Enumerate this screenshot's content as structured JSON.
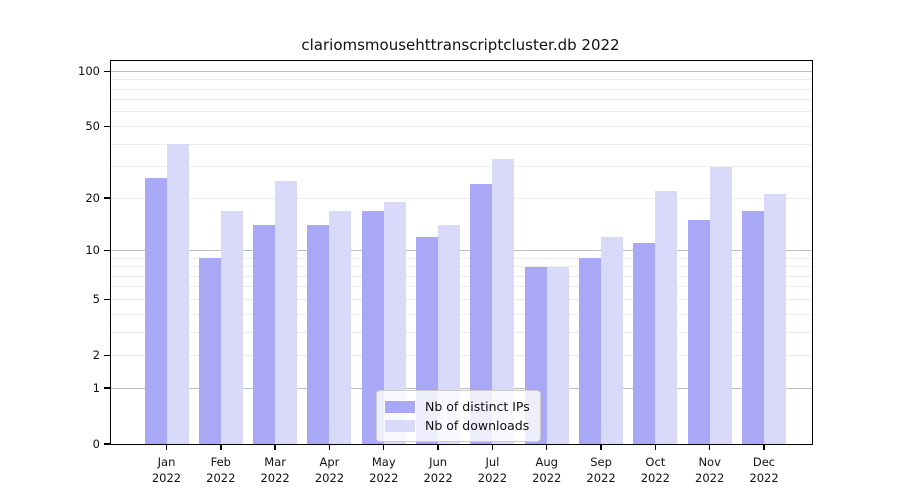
{
  "title": "clariomsmousehttranscriptcluster.db 2022",
  "chart_data": {
    "type": "bar",
    "title": "clariomsmousehttranscriptcluster.db 2022",
    "categories": [
      "Jan",
      "Feb",
      "Mar",
      "Apr",
      "May",
      "Jun",
      "Jul",
      "Aug",
      "Sep",
      "Oct",
      "Nov",
      "Dec"
    ],
    "category_year": "2022",
    "series": [
      {
        "name": "Nb of distinct IPs",
        "color": "#a8a8f6",
        "values": [
          26,
          9,
          14,
          14,
          17,
          12,
          24,
          8,
          9,
          11,
          15,
          17
        ]
      },
      {
        "name": "Nb of downloads",
        "color": "#d9d9f9",
        "values": [
          40,
          17,
          25,
          17,
          19,
          14,
          33,
          8,
          12,
          22,
          30,
          21
        ]
      }
    ],
    "xlabel": "",
    "ylabel": "",
    "yscale": "log1p",
    "yticks": [
      0,
      1,
      2,
      5,
      10,
      20,
      50,
      100
    ],
    "gridlines_major": [
      1,
      10,
      100
    ],
    "gridlines_minor": [
      2,
      3,
      4,
      5,
      6,
      7,
      8,
      9,
      20,
      30,
      40,
      50,
      60,
      70,
      80,
      90
    ],
    "ylim": [
      0,
      113
    ],
    "grid": true,
    "legend_position": "bottom-center",
    "colors": {
      "major_grid": "#bdbdbd",
      "minor_grid": "#ededed",
      "spine": "#000000",
      "text": "#111111"
    }
  }
}
